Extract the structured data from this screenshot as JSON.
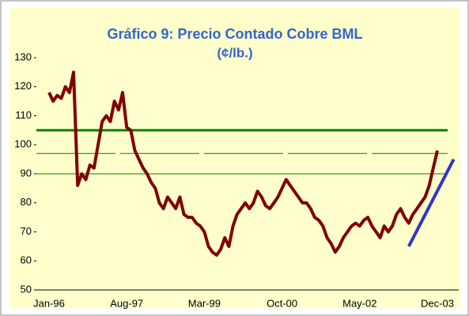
{
  "chart_data": {
    "type": "line",
    "title": "Gráfico 9: Precio Contado Cobre BML",
    "subtitle": "(¢/lb.)",
    "categories": [
      "Jan-96",
      null,
      null,
      null,
      null,
      null,
      null,
      null,
      null,
      null,
      null,
      null,
      null,
      null,
      null,
      null,
      null,
      null,
      null,
      "Aug-97",
      null,
      null,
      null,
      null,
      null,
      null,
      null,
      null,
      null,
      null,
      null,
      null,
      null,
      null,
      null,
      null,
      null,
      null,
      "Mar-99",
      null,
      null,
      null,
      null,
      null,
      null,
      null,
      null,
      null,
      null,
      null,
      null,
      null,
      null,
      null,
      null,
      null,
      null,
      "Oct-00",
      null,
      null,
      null,
      null,
      null,
      null,
      null,
      null,
      null,
      null,
      null,
      null,
      null,
      null,
      null,
      null,
      null,
      null,
      "May-02",
      null,
      null,
      null,
      null,
      null,
      null,
      null,
      null,
      null,
      null,
      null,
      null,
      null,
      null,
      null,
      null,
      null,
      null,
      "Dec-03"
    ],
    "series": [
      {
        "name": "Precio Contado Cobre BML",
        "color": "#800000",
        "values": [
          118,
          115,
          117,
          116,
          120,
          118,
          125,
          86,
          90,
          88,
          93,
          92,
          100,
          108,
          110,
          108,
          115,
          112,
          118,
          106,
          105,
          98,
          95,
          92,
          90,
          87,
          85,
          80,
          78,
          82,
          80,
          78,
          82,
          76,
          75,
          75,
          73,
          72,
          70,
          65,
          63,
          62,
          64,
          68,
          65,
          72,
          76,
          78,
          80,
          78,
          80,
          84,
          82,
          79,
          78,
          80,
          82,
          85,
          88,
          86,
          84,
          82,
          80,
          80,
          78,
          75,
          74,
          72,
          68,
          66,
          63,
          65,
          68,
          70,
          72,
          73,
          72,
          74,
          75,
          72,
          70,
          68,
          72,
          70,
          72,
          76,
          78,
          75,
          73,
          76,
          78,
          80,
          82,
          86,
          92,
          98
        ]
      }
    ],
    "reference_lines": [
      {
        "value": 105,
        "color": "#008000",
        "width": 3
      },
      {
        "value": 97,
        "color": "#008000",
        "width": 1,
        "dashed": true
      },
      {
        "value": 90,
        "color": "#008000",
        "width": 1
      }
    ],
    "trend": {
      "x": [
        88,
        99
      ],
      "y": [
        65,
        95
      ],
      "color": "#3333cc"
    },
    "ylim": [
      50,
      130
    ],
    "yticks": [
      50,
      60,
      70,
      80,
      90,
      100,
      110,
      120,
      130
    ],
    "background": "#ffffcc",
    "title_color": "#3366cc"
  }
}
